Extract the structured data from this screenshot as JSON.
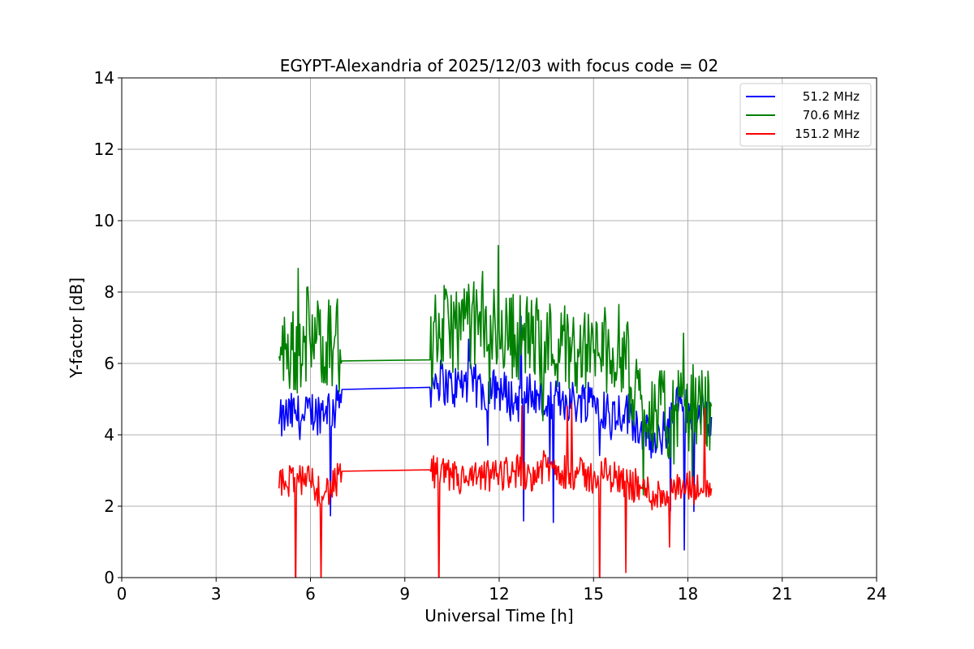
{
  "chart_data": {
    "type": "line",
    "title": "EGYPT-Alexandria of 2025/12/03 with focus code = 02",
    "xlabel": "Universal Time [h]",
    "ylabel": "Y-factor [dB]",
    "xlim": [
      0,
      24
    ],
    "ylim": [
      0,
      14
    ],
    "xticks": [
      0,
      3,
      6,
      9,
      12,
      15,
      18,
      21,
      24
    ],
    "yticks": [
      0,
      2,
      4,
      6,
      8,
      10,
      12,
      14
    ],
    "grid": true,
    "legend_position": "top-right",
    "series": [
      {
        "name": "51.2 MHz",
        "color": "#0000ff",
        "x": [
          5.0,
          5.2,
          5.5,
          5.8,
          6.0,
          6.2,
          6.5,
          6.8,
          7.0,
          9.8,
          10.0,
          10.5,
          11.0,
          11.5,
          12.0,
          12.5,
          13.0,
          13.5,
          14.0,
          14.5,
          15.0,
          15.5,
          16.0,
          16.5,
          17.0,
          17.2,
          17.5,
          17.8,
          18.0,
          18.3,
          18.5,
          18.75
        ],
        "y": [
          4.3,
          4.5,
          4.6,
          4.4,
          4.7,
          4.6,
          4.8,
          4.7,
          5.27,
          5.33,
          5.6,
          5.3,
          5.5,
          5.2,
          5.3,
          4.9,
          5.2,
          4.8,
          5.0,
          4.9,
          5.1,
          4.6,
          4.7,
          4.2,
          3.6,
          4.0,
          4.5,
          5.0,
          4.8,
          4.4,
          4.6,
          4.5
        ]
      },
      {
        "name": "70.6 MHz",
        "color": "#008000",
        "x": [
          5.0,
          5.2,
          5.5,
          5.8,
          6.0,
          6.2,
          6.5,
          6.8,
          7.0,
          9.8,
          10.0,
          10.5,
          11.0,
          11.5,
          12.0,
          12.5,
          13.0,
          13.5,
          14.0,
          14.5,
          15.0,
          15.5,
          16.0,
          16.2,
          16.5,
          17.0,
          17.5,
          18.0,
          18.3,
          18.5,
          18.75
        ],
        "y": [
          6.2,
          6.4,
          6.3,
          6.6,
          6.5,
          6.7,
          6.6,
          6.8,
          6.07,
          6.1,
          6.9,
          7.0,
          7.1,
          7.0,
          6.9,
          6.8,
          6.7,
          6.6,
          6.5,
          6.4,
          6.3,
          6.4,
          6.4,
          5.3,
          5.0,
          4.7,
          4.4,
          4.8,
          4.7,
          4.8,
          4.8
        ]
      },
      {
        "name": "151.2 MHz",
        "color": "#ff0000",
        "x": [
          5.0,
          5.2,
          5.5,
          5.8,
          6.0,
          6.2,
          6.5,
          6.8,
          7.0,
          9.8,
          10.0,
          10.5,
          11.0,
          11.5,
          12.0,
          12.5,
          13.0,
          13.5,
          14.0,
          14.5,
          15.0,
          15.5,
          16.0,
          16.5,
          17.0,
          17.5,
          18.0,
          18.5,
          18.75
        ],
        "y": [
          2.5,
          2.7,
          2.8,
          2.6,
          2.7,
          2.5,
          2.4,
          2.6,
          2.98,
          3.02,
          2.9,
          2.8,
          2.7,
          2.8,
          2.9,
          3.0,
          2.9,
          3.1,
          3.0,
          2.9,
          2.8,
          2.9,
          2.7,
          2.5,
          2.3,
          2.4,
          2.5,
          2.4,
          2.5
        ]
      }
    ]
  }
}
